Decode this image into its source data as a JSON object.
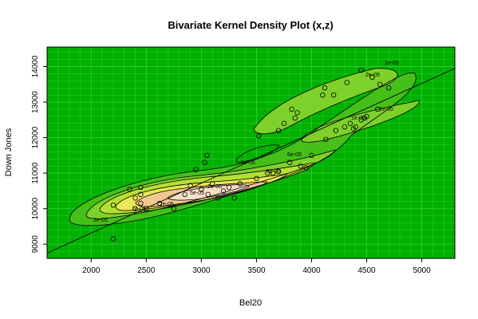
{
  "chart_data": {
    "type": "scatter",
    "title": "Bivariate Kernel Density Plot (x,z)",
    "xlabel": "Bel20",
    "ylabel": "Down Jones",
    "xlim": [
      1600,
      5300
    ],
    "ylim": [
      8600,
      14550
    ],
    "xticks": [
      2000,
      2500,
      3000,
      3500,
      4000,
      4500,
      5000
    ],
    "yticks": [
      9000,
      10000,
      11000,
      12000,
      13000,
      14000
    ],
    "grid": true,
    "background_color": "#00b000",
    "grid_color": "#33cc33",
    "contour_labels": [
      "1e-05",
      "2e-05",
      "2e-05",
      "1e-05",
      "8e-05",
      "6e-05",
      "5e-05",
      "2e-05",
      "2e-05",
      "1e-05",
      "2e-05",
      "5e-05"
    ],
    "regression_line": {
      "x": [
        1600,
        5300
      ],
      "y": [
        8750,
        13950
      ]
    },
    "points": [
      [
        2200,
        9150
      ],
      [
        2200,
        10100
      ],
      [
        2350,
        10550
      ],
      [
        2400,
        10000
      ],
      [
        2400,
        10300
      ],
      [
        2450,
        10150
      ],
      [
        2450,
        10400
      ],
      [
        2450,
        10600
      ],
      [
        2500,
        10000
      ],
      [
        2620,
        10150
      ],
      [
        2750,
        10000
      ],
      [
        2850,
        10400
      ],
      [
        2900,
        10650
      ],
      [
        2950,
        11100
      ],
      [
        3000,
        10550
      ],
      [
        3030,
        11300
      ],
      [
        3050,
        11500
      ],
      [
        3060,
        10400
      ],
      [
        3100,
        10700
      ],
      [
        3150,
        10300
      ],
      [
        3200,
        10500
      ],
      [
        3250,
        10600
      ],
      [
        3300,
        10300
      ],
      [
        3350,
        10700
      ],
      [
        3500,
        10850
      ],
      [
        3520,
        12050
      ],
      [
        3600,
        11000
      ],
      [
        3650,
        11000
      ],
      [
        3700,
        11050
      ],
      [
        3700,
        12200
      ],
      [
        3750,
        12400
      ],
      [
        3800,
        11300
      ],
      [
        3820,
        12800
      ],
      [
        3850,
        12550
      ],
      [
        3870,
        12700
      ],
      [
        3900,
        11200
      ],
      [
        3950,
        11150
      ],
      [
        4000,
        11500
      ],
      [
        4100,
        13200
      ],
      [
        4120,
        13400
      ],
      [
        4130,
        11950
      ],
      [
        4200,
        13200
      ],
      [
        4220,
        12200
      ],
      [
        4300,
        12300
      ],
      [
        4320,
        13550
      ],
      [
        4350,
        12400
      ],
      [
        4380,
        12250
      ],
      [
        4400,
        12300
      ],
      [
        4450,
        12500
      ],
      [
        4480,
        12550
      ],
      [
        4500,
        12600
      ],
      [
        4550,
        13700
      ],
      [
        4600,
        12800
      ],
      [
        4620,
        13500
      ],
      [
        4700,
        13400
      ],
      [
        4450,
        13900
      ]
    ]
  }
}
